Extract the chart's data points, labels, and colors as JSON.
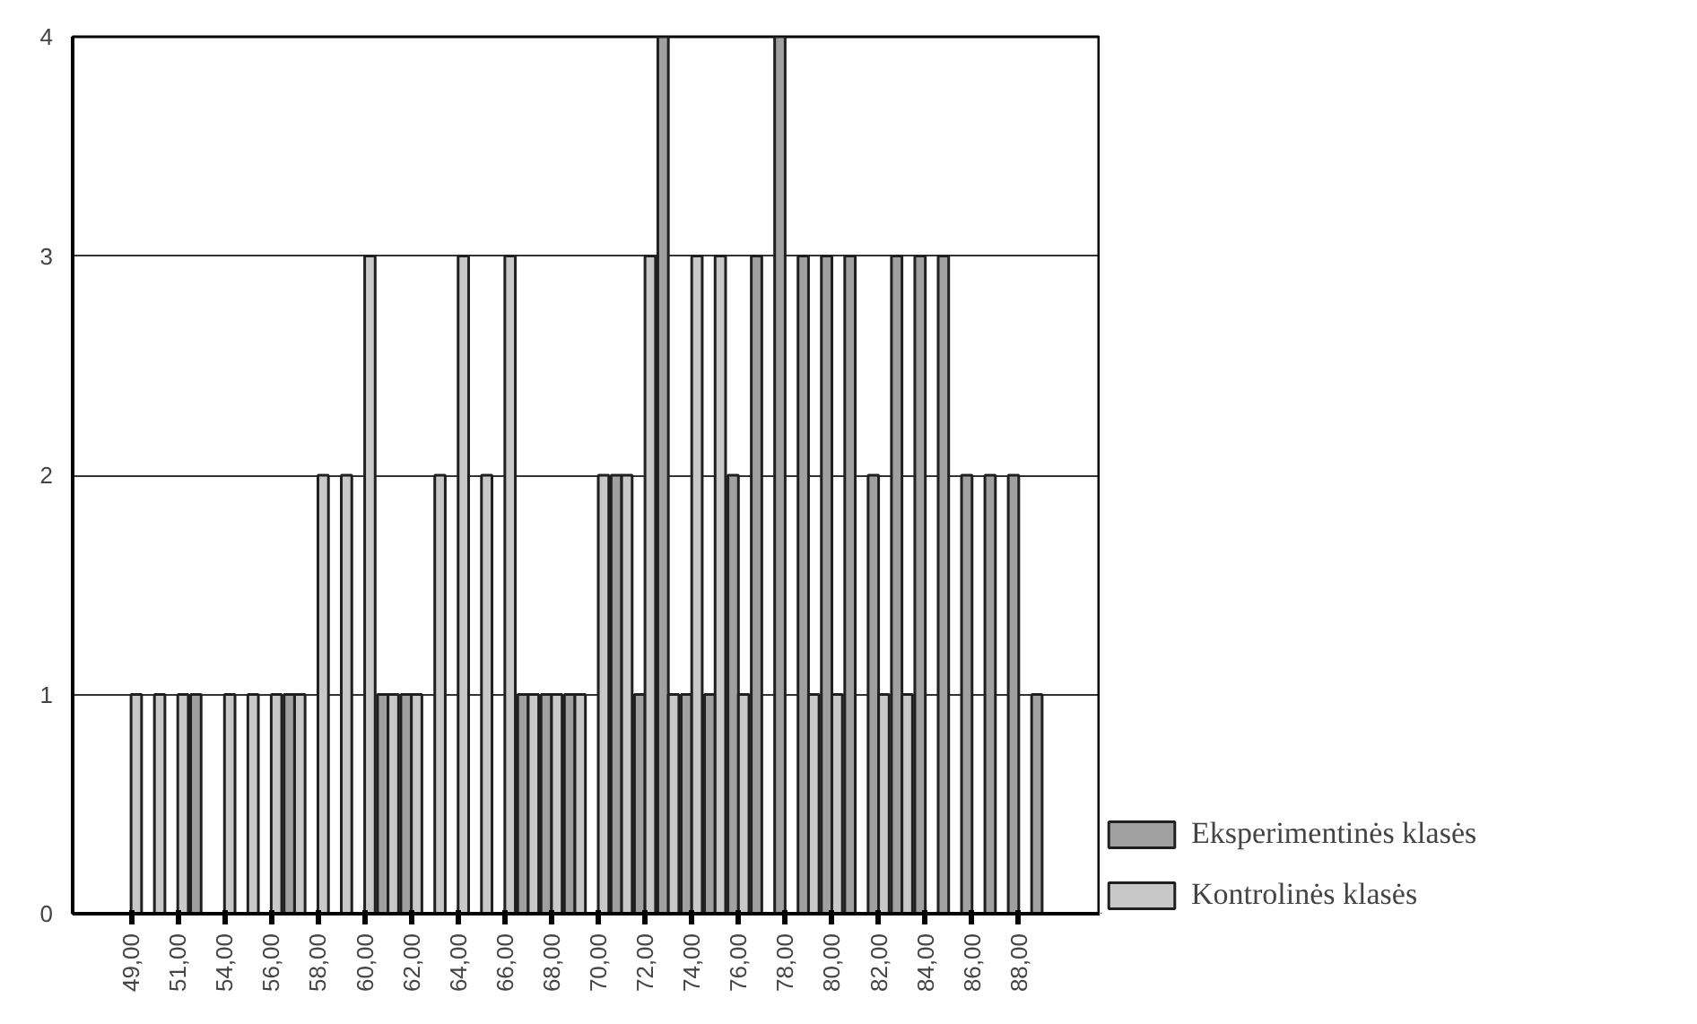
{
  "chart_data": {
    "type": "bar",
    "categories": [
      "49,00",
      null,
      "51,00",
      null,
      "54,00",
      null,
      "56,00",
      null,
      "58,00",
      null,
      "60,00",
      null,
      "62,00",
      null,
      "64,00",
      null,
      "66,00",
      null,
      "68,00",
      null,
      "70,00",
      null,
      "72,00",
      null,
      "74,00",
      null,
      "76,00",
      null,
      "78,00",
      null,
      "80,00",
      null,
      "82,00",
      null,
      "84,00",
      null,
      "86,00",
      null,
      "88,00",
      null
    ],
    "series": [
      {
        "name": "Eksperimentinės klasės",
        "color": "#a0a0a0",
        "values": [
          0,
          0,
          0,
          1,
          0,
          0,
          0,
          1,
          0,
          0,
          0,
          1,
          1,
          0,
          0,
          0,
          0,
          1,
          1,
          1,
          0,
          2,
          1,
          4,
          1,
          1,
          2,
          3,
          4,
          3,
          3,
          3,
          2,
          3,
          3,
          3,
          2,
          2,
          2,
          1
        ]
      },
      {
        "name": "Kontrolinės klasės",
        "color": "#c8c8c8",
        "values": [
          1,
          1,
          1,
          0,
          1,
          1,
          1,
          1,
          2,
          2,
          3,
          1,
          1,
          2,
          3,
          2,
          3,
          1,
          1,
          1,
          2,
          2,
          3,
          1,
          3,
          3,
          1,
          0,
          0,
          1,
          1,
          0,
          1,
          1,
          0,
          0,
          0,
          0,
          0,
          0
        ]
      }
    ],
    "ylim": [
      0,
      4
    ],
    "yticks": [
      0,
      1,
      2,
      3,
      4
    ],
    "grid": "y",
    "legend": "bottom right"
  }
}
